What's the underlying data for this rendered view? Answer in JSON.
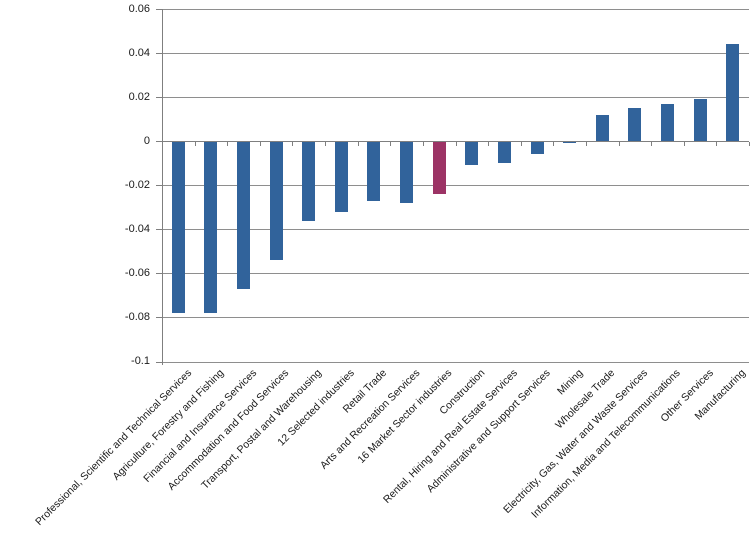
{
  "chart_data": {
    "type": "bar",
    "title": "",
    "xlabel": "",
    "ylabel": "",
    "categories": [
      "Professional, Scientific and Technical Services",
      "Agriculture, Forestry and Fishing",
      "Financial and Insurance Services",
      "Accommodation and Food Services",
      "Transport, Postal and Warehousing",
      "12 Selected industries",
      "Retail Trade",
      "Arts and Recreation Services",
      "16 Market Sector industries",
      "Construction",
      "Rental, Hiring and Real Estate Services",
      "Administrative and Support Services",
      "Mining",
      "Wholesale Trade",
      "Electricity, Gas, Water and Waste Services",
      "Information, Media and Telecommunications",
      "Other Services",
      "Manufacturing"
    ],
    "values": [
      -0.078,
      -0.078,
      -0.067,
      -0.054,
      -0.036,
      -0.032,
      -0.027,
      -0.028,
      -0.024,
      -0.011,
      -0.01,
      -0.006,
      -0.001,
      0.012,
      0.015,
      0.017,
      0.019,
      0.044
    ],
    "highlight_category": "16 Market Sector industries",
    "highlight_index": 8,
    "ylim": [
      -0.1,
      0.06
    ],
    "ytick_step": 0.02,
    "ytick_labels": [
      "0.06",
      "0.04",
      "0.02",
      "0",
      "-0.02",
      "-0.04",
      "-0.06",
      "-0.08",
      "-0.1"
    ],
    "grid": true,
    "legend": false,
    "colors": {
      "bar": "#31639B",
      "highlight": "#9C3365",
      "gridline": "#8E8E8E",
      "axis": "#7F7F7F",
      "text": "#1A1A1A",
      "background": "#FFFFFF"
    }
  }
}
